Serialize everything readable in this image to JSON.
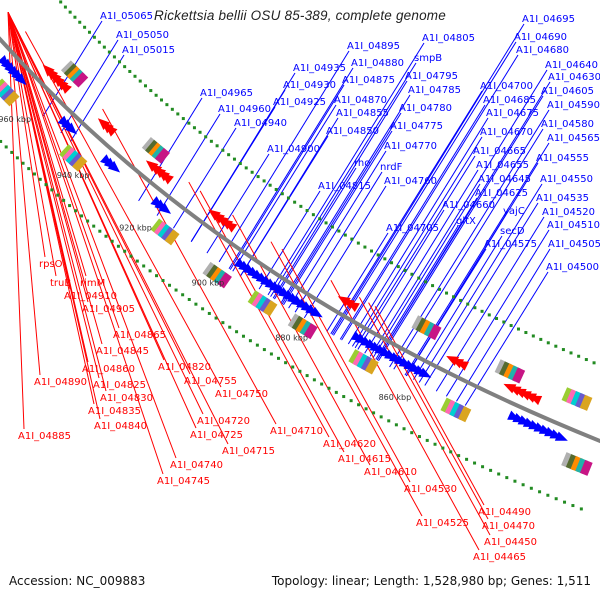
{
  "title": "Rickettsia bellii OSU 85-389, complete genome",
  "footer": {
    "accession": "Accession: NC_009883",
    "summary": "Topology: linear; Length: 1,528,980 bp; Genes: 1,511"
  },
  "colors": {
    "forward": "#0000ff",
    "reverse": "#ff0000",
    "backbone": "#808080",
    "tick": "#228b22",
    "kbp": "#333333"
  },
  "kbp_ticks": [
    "960 kbp",
    "940 kbp",
    "920 kbp",
    "900 kbp",
    "880 kbp",
    "860 kbp"
  ],
  "forward_labels": [
    "A1I_05065",
    "A1I_05050",
    "A1I_05015",
    "A1I_04965",
    "A1I_04960",
    "A1I_04940",
    "A1I_04935",
    "A1I_04930",
    "A1I_04925",
    "A1I_04900",
    "A1I_04895",
    "A1I_04880",
    "A1I_04875",
    "A1I_04870",
    "A1I_04855",
    "A1I_04850",
    "rho",
    "A1I_04815",
    "smpB",
    "A1I_04805",
    "A1I_04795",
    "A1I_04785",
    "A1I_04780",
    "A1I_04775",
    "A1I_04770",
    "nrdF",
    "A1I_04760",
    "A1I_04705",
    "A1I_04695",
    "A1I_04690",
    "A1I_04680",
    "A1I_04700",
    "A1I_04685",
    "A1I_04675",
    "A1I_04670",
    "A1I_04665",
    "A1I_04655",
    "A1I_04645",
    "A1I_04625",
    "A1I_04660",
    "gltX",
    "yajC",
    "secD",
    "A1I_04575",
    "A1I_04640",
    "A1I_04630",
    "A1I_04605",
    "A1I_04590",
    "A1I_04580",
    "A1I_04565",
    "A1I_04555",
    "A1I_04550",
    "A1I_04535",
    "A1I_04520",
    "A1I_04510",
    "A1I_04505",
    "A1I_04500"
  ],
  "reverse_labels": [
    "rpsO",
    "truB",
    "rimM",
    "A1I_04910",
    "A1I_04905",
    "A1I_04865",
    "A1I_04845",
    "A1I_04860",
    "A1I_04890",
    "A1I_04825",
    "A1I_04830",
    "A1I_04835",
    "A1I_04840",
    "A1I_04885",
    "A1I_04820",
    "A1I_04755",
    "A1I_04750",
    "A1I_04720",
    "A1I_04725",
    "A1I_04710",
    "A1I_04715",
    "A1I_04740",
    "A1I_04745",
    "A1I_04620",
    "A1I_04615",
    "A1I_04610",
    "A1I_04530",
    "A1I_04525",
    "A1I_04490",
    "A1I_04470",
    "A1I_04450",
    "A1I_04465"
  ]
}
